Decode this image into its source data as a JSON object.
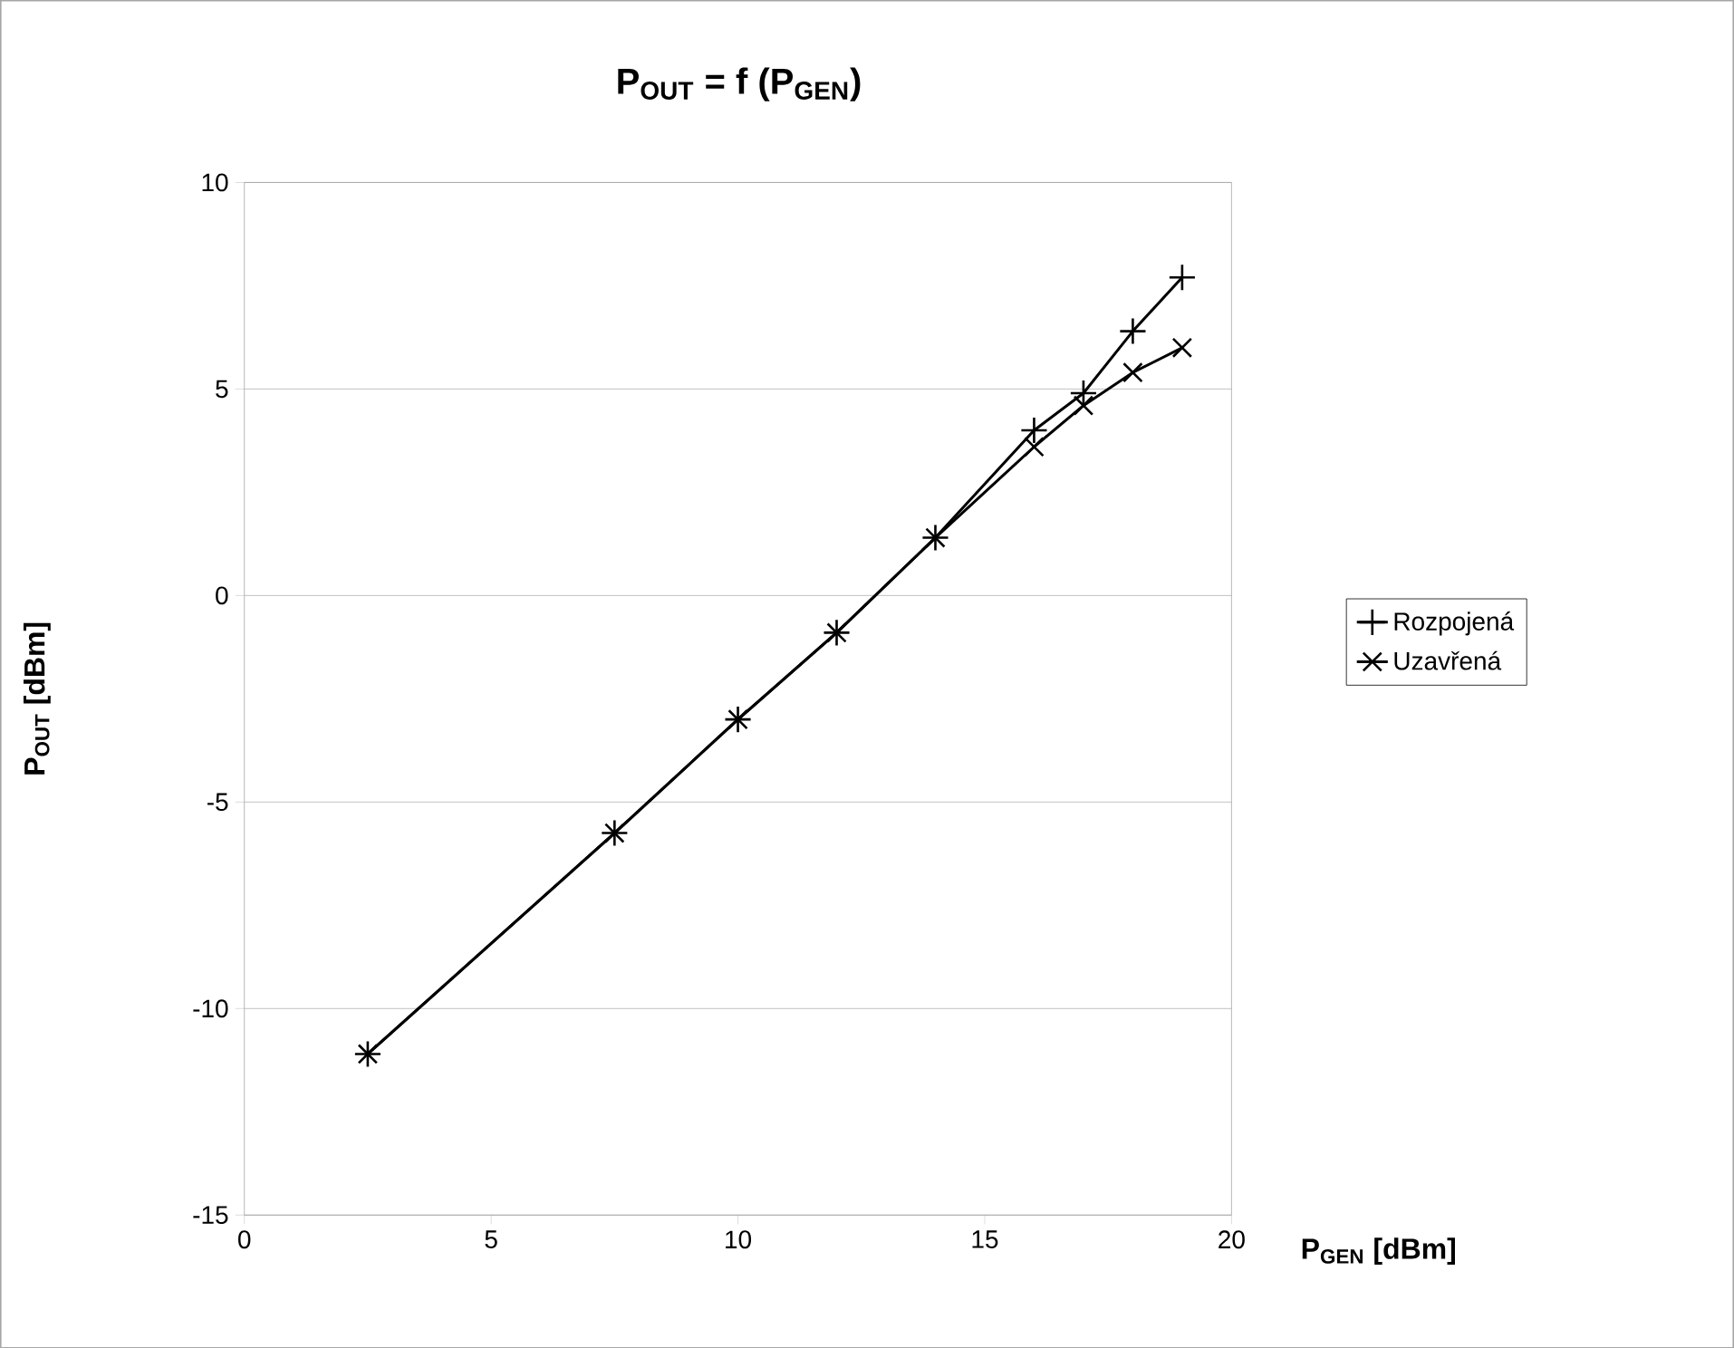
{
  "chart_data": {
    "type": "line",
    "title": "P$_{OUT}$ = f (P$_{GEN}$)",
    "xlabel": "P$_{GEN}$ [dBm]",
    "ylabel": "P$_{OUT}$ [dBm]",
    "x": [
      2.5,
      7.5,
      10,
      12,
      14,
      16,
      17,
      18,
      19
    ],
    "series": [
      {
        "name": "Rozpojená",
        "color": "#000000",
        "marker": "plus",
        "values": [
          -11.1,
          -5.75,
          -3.0,
          -0.9,
          1.4,
          4.0,
          4.9,
          6.4,
          7.7
        ]
      },
      {
        "name": "Uzavřená",
        "color": "#000000",
        "marker": "cross",
        "values": [
          -11.1,
          -5.75,
          -3.0,
          -0.9,
          1.4,
          3.6,
          4.6,
          5.4,
          6.0
        ]
      }
    ],
    "xlim": [
      0,
      20
    ],
    "xticks": [
      0,
      5,
      10,
      15,
      20
    ],
    "ylim": [
      -15,
      10
    ],
    "yticks": [
      -15,
      -10,
      -5,
      0,
      5,
      10
    ],
    "grid": "y",
    "legend": "right",
    "line_style": "solid"
  }
}
